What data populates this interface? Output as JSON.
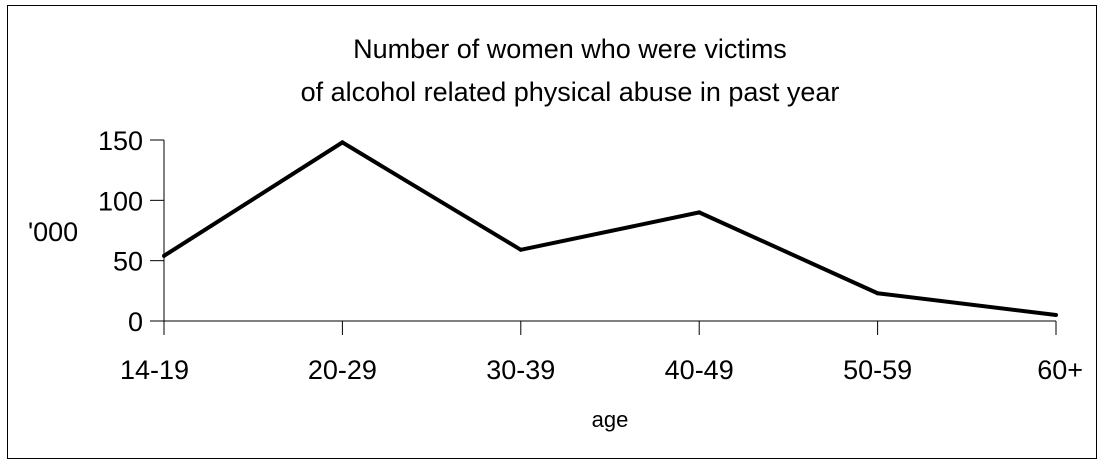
{
  "chart_data": {
    "type": "line",
    "title_lines": [
      "Number of women who were victims",
      "of alcohol related physical abuse in past year"
    ],
    "xlabel": "age",
    "ylabel": "'000",
    "categories": [
      "14-19",
      "20-29",
      "30-39",
      "40-49",
      "50-59",
      "60+"
    ],
    "series": [
      {
        "values": [
          54,
          148,
          59,
          90,
          23,
          5
        ]
      }
    ],
    "ylim": [
      0,
      150
    ],
    "yticks": [
      0,
      50,
      100,
      150
    ],
    "grid": false,
    "legend": "none",
    "line_color": "#000000"
  }
}
